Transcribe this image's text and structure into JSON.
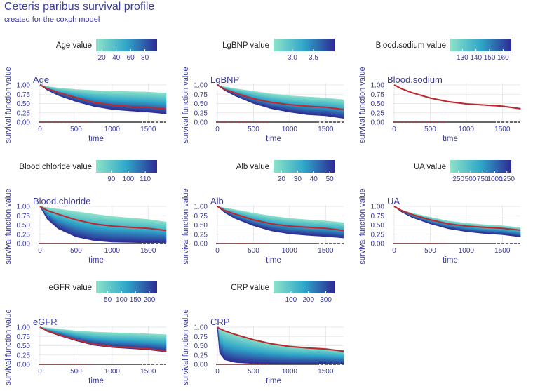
{
  "title": "Ceteris paribus survival profile",
  "subtitle": "created for the coxph model",
  "colors": {
    "title": "#3b3b9e",
    "axis_text": "#3b3b9e",
    "observed_line": "#c0282d",
    "gradient_low": "#8ee3c8",
    "gradient_mid": "#2fa6c9",
    "gradient_high": "#2e2a93",
    "grid": "#e3e3e8",
    "baseline": "#333333"
  },
  "chart_data": [
    {
      "type": "area",
      "variable": "Age",
      "legend_title": "Age value",
      "legend_ticks": [
        "20",
        "40",
        "60",
        "80"
      ],
      "legend_tick_values": [
        20,
        40,
        60,
        80
      ],
      "legend_range": [
        12,
        97
      ],
      "xlabel": "time",
      "ylabel": "survival function value",
      "x_ticks": [
        "0",
        "500",
        "1000",
        "1500"
      ],
      "x_tick_values": [
        0,
        500,
        1000,
        1500
      ],
      "xlim": [
        0,
        1750
      ],
      "y_ticks": [
        "0.00",
        "0.25",
        "0.50",
        "0.75",
        "1.00"
      ],
      "y_tick_values": [
        0,
        0.25,
        0.5,
        0.75,
        1
      ],
      "ylim": [
        0,
        1
      ],
      "time": [
        0,
        100,
        250,
        500,
        750,
        1000,
        1250,
        1500,
        1750
      ],
      "upper": [
        1.0,
        0.96,
        0.92,
        0.88,
        0.85,
        0.83,
        0.82,
        0.81,
        0.78
      ],
      "observed": [
        1.0,
        0.9,
        0.8,
        0.66,
        0.53,
        0.46,
        0.42,
        0.4,
        0.35
      ],
      "lower": [
        1.0,
        0.86,
        0.72,
        0.55,
        0.42,
        0.34,
        0.3,
        0.27,
        0.22
      ]
    },
    {
      "type": "area",
      "variable": "LgBNP",
      "legend_title": "LgBNP value",
      "legend_ticks": [
        "3.0",
        "3.5"
      ],
      "legend_tick_values": [
        3.0,
        3.5
      ],
      "legend_range": [
        2.55,
        4.0
      ],
      "xlabel": "time",
      "ylabel": "survival function value",
      "x_ticks": [
        "0",
        "500",
        "1000",
        "1500"
      ],
      "x_tick_values": [
        0,
        500,
        1000,
        1500
      ],
      "xlim": [
        0,
        1750
      ],
      "y_ticks": [
        "0.00",
        "0.25",
        "0.50",
        "0.75",
        "1.00"
      ],
      "y_tick_values": [
        0,
        0.25,
        0.5,
        0.75,
        1
      ],
      "ylim": [
        0,
        1
      ],
      "time": [
        0,
        100,
        250,
        500,
        750,
        1000,
        1250,
        1500,
        1750
      ],
      "upper": [
        1.0,
        0.95,
        0.9,
        0.83,
        0.76,
        0.71,
        0.68,
        0.65,
        0.6
      ],
      "observed": [
        1.0,
        0.88,
        0.78,
        0.63,
        0.53,
        0.47,
        0.43,
        0.4,
        0.34
      ],
      "lower": [
        1.0,
        0.85,
        0.7,
        0.5,
        0.36,
        0.27,
        0.2,
        0.17,
        0.1
      ]
    },
    {
      "type": "area",
      "variable": "Blood.sodium",
      "legend_title": "Blood.sodium value",
      "legend_ticks": [
        "130",
        "140",
        "150",
        "160"
      ],
      "legend_tick_values": [
        130,
        140,
        150,
        160
      ],
      "legend_range": [
        121,
        166
      ],
      "xlabel": "time",
      "ylabel": "survival function value",
      "x_ticks": [
        "0",
        "500",
        "1000",
        "1500"
      ],
      "x_tick_values": [
        0,
        500,
        1000,
        1500
      ],
      "xlim": [
        0,
        1750
      ],
      "y_ticks": [
        "0.00",
        "0.25",
        "0.50",
        "0.75",
        "1.00"
      ],
      "y_tick_values": [
        0,
        0.25,
        0.5,
        0.75,
        1
      ],
      "ylim": [
        0,
        1
      ],
      "time": [
        0,
        100,
        250,
        500,
        750,
        1000,
        1250,
        1500,
        1750
      ],
      "upper": [
        1.0,
        0.91,
        0.8,
        0.66,
        0.56,
        0.5,
        0.47,
        0.44,
        0.38
      ],
      "observed": [
        1.0,
        0.9,
        0.79,
        0.65,
        0.55,
        0.49,
        0.46,
        0.43,
        0.36
      ],
      "lower": [
        1.0,
        0.89,
        0.78,
        0.64,
        0.54,
        0.48,
        0.45,
        0.42,
        0.35
      ]
    },
    {
      "type": "area",
      "variable": "Blood.chloride",
      "legend_title": "Blood.chloride value",
      "legend_ticks": [
        "90",
        "100",
        "110"
      ],
      "legend_tick_values": [
        90,
        100,
        110
      ],
      "legend_range": [
        81,
        117
      ],
      "xlabel": "time",
      "ylabel": "survival function value",
      "x_ticks": [
        "0",
        "500",
        "1000",
        "1500"
      ],
      "x_tick_values": [
        0,
        500,
        1000,
        1500
      ],
      "xlim": [
        0,
        1750
      ],
      "y_ticks": [
        "0.00",
        "0.25",
        "0.50",
        "0.75",
        "1.00"
      ],
      "y_tick_values": [
        0,
        0.25,
        0.5,
        0.75,
        1
      ],
      "ylim": [
        0,
        1
      ],
      "time": [
        0,
        100,
        250,
        500,
        750,
        1000,
        1250,
        1500,
        1750
      ],
      "upper": [
        1.0,
        0.97,
        0.93,
        0.86,
        0.79,
        0.73,
        0.69,
        0.65,
        0.58
      ],
      "observed": [
        1.0,
        0.89,
        0.79,
        0.64,
        0.53,
        0.47,
        0.44,
        0.41,
        0.35
      ],
      "lower": [
        1.0,
        0.66,
        0.4,
        0.18,
        0.08,
        0.04,
        0.03,
        0.02,
        0.02
      ]
    },
    {
      "type": "area",
      "variable": "Alb",
      "legend_title": "Alb value",
      "legend_ticks": [
        "20",
        "30",
        "40",
        "50"
      ],
      "legend_tick_values": [
        20,
        30,
        40,
        50
      ],
      "legend_range": [
        15,
        53
      ],
      "xlabel": "time",
      "ylabel": "survival function value",
      "x_ticks": [
        "0",
        "500",
        "1000",
        "1500"
      ],
      "x_tick_values": [
        0,
        500,
        1000,
        1500
      ],
      "xlim": [
        0,
        1750
      ],
      "y_ticks": [
        "0.00",
        "0.25",
        "0.50",
        "0.75",
        "1.00"
      ],
      "y_tick_values": [
        0,
        0.25,
        0.5,
        0.75,
        1
      ],
      "ylim": [
        0,
        1
      ],
      "time": [
        0,
        100,
        250,
        500,
        750,
        1000,
        1250,
        1500,
        1750
      ],
      "upper": [
        1.0,
        0.96,
        0.91,
        0.82,
        0.74,
        0.68,
        0.64,
        0.61,
        0.56
      ],
      "observed": [
        1.0,
        0.89,
        0.79,
        0.64,
        0.53,
        0.47,
        0.44,
        0.41,
        0.35
      ],
      "lower": [
        1.0,
        0.83,
        0.67,
        0.48,
        0.34,
        0.26,
        0.22,
        0.19,
        0.15
      ]
    },
    {
      "type": "area",
      "variable": "UA",
      "legend_title": "UA value",
      "legend_ticks": [
        "250",
        "500",
        "750",
        "1000",
        "1250"
      ],
      "legend_tick_values": [
        250,
        500,
        750,
        1000,
        1250
      ],
      "legend_range": [
        80,
        1340
      ],
      "xlabel": "time",
      "ylabel": "survival function value",
      "x_ticks": [
        "0",
        "500",
        "1000",
        "1500"
      ],
      "x_tick_values": [
        0,
        500,
        1000,
        1500
      ],
      "xlim": [
        0,
        1750
      ],
      "y_ticks": [
        "0.00",
        "0.25",
        "0.50",
        "0.75",
        "1.00"
      ],
      "y_tick_values": [
        0,
        0.25,
        0.5,
        0.75,
        1
      ],
      "ylim": [
        0,
        1
      ],
      "time": [
        0,
        100,
        250,
        500,
        750,
        1000,
        1250,
        1500,
        1750
      ],
      "upper": [
        1.0,
        0.91,
        0.82,
        0.71,
        0.61,
        0.55,
        0.51,
        0.48,
        0.43
      ],
      "observed": [
        1.0,
        0.89,
        0.78,
        0.64,
        0.53,
        0.47,
        0.44,
        0.41,
        0.36
      ],
      "lower": [
        1.0,
        0.85,
        0.7,
        0.53,
        0.4,
        0.32,
        0.27,
        0.24,
        0.18
      ]
    },
    {
      "type": "area",
      "variable": "eGFR",
      "legend_title": "eGFR value",
      "legend_ticks": [
        "50",
        "100",
        "150",
        "200"
      ],
      "legend_tick_values": [
        50,
        100,
        150,
        200
      ],
      "legend_range": [
        8,
        228
      ],
      "xlabel": "time",
      "ylabel": "survival function value",
      "x_ticks": [
        "0",
        "500",
        "1000",
        "1500"
      ],
      "x_tick_values": [
        0,
        500,
        1000,
        1500
      ],
      "xlim": [
        0,
        1750
      ],
      "y_ticks": [
        "0.00",
        "0.25",
        "0.50",
        "0.75",
        "1.00"
      ],
      "y_tick_values": [
        0,
        0.25,
        0.5,
        0.75,
        1
      ],
      "ylim": [
        0,
        1
      ],
      "time": [
        0,
        100,
        250,
        500,
        750,
        1000,
        1250,
        1500,
        1750
      ],
      "upper": [
        1.0,
        0.98,
        0.95,
        0.9,
        0.87,
        0.85,
        0.84,
        0.82,
        0.8
      ],
      "observed": [
        1.0,
        0.9,
        0.8,
        0.66,
        0.54,
        0.48,
        0.45,
        0.42,
        0.35
      ],
      "lower": [
        1.0,
        0.88,
        0.78,
        0.63,
        0.51,
        0.45,
        0.42,
        0.39,
        0.33
      ]
    },
    {
      "type": "area",
      "variable": "CRP",
      "legend_title": "CRP value",
      "legend_ticks": [
        "100",
        "200",
        "300"
      ],
      "legend_tick_values": [
        100,
        200,
        300
      ],
      "legend_range": [
        0,
        350
      ],
      "xlabel": "time",
      "ylabel": "survival function value",
      "x_ticks": [
        "0",
        "500",
        "1000",
        "1500"
      ],
      "x_tick_values": [
        0,
        500,
        1000,
        1500
      ],
      "xlim": [
        0,
        1750
      ],
      "y_ticks": [
        "0.00",
        "0.25",
        "0.50",
        "0.75",
        "1.00"
      ],
      "y_tick_values": [
        0,
        0.25,
        0.5,
        0.75,
        1
      ],
      "ylim": [
        0,
        1
      ],
      "time": [
        0,
        30,
        100,
        250,
        500,
        750,
        1000,
        1250,
        1500,
        1750
      ],
      "upper": [
        1.0,
        0.96,
        0.91,
        0.82,
        0.68,
        0.57,
        0.5,
        0.46,
        0.43,
        0.37
      ],
      "observed": [
        1.0,
        0.96,
        0.9,
        0.8,
        0.66,
        0.55,
        0.48,
        0.44,
        0.41,
        0.35
      ],
      "lower": [
        1.0,
        0.3,
        0.12,
        0.05,
        0.02,
        0.01,
        0.0,
        0.0,
        0.0,
        0.0
      ]
    }
  ]
}
